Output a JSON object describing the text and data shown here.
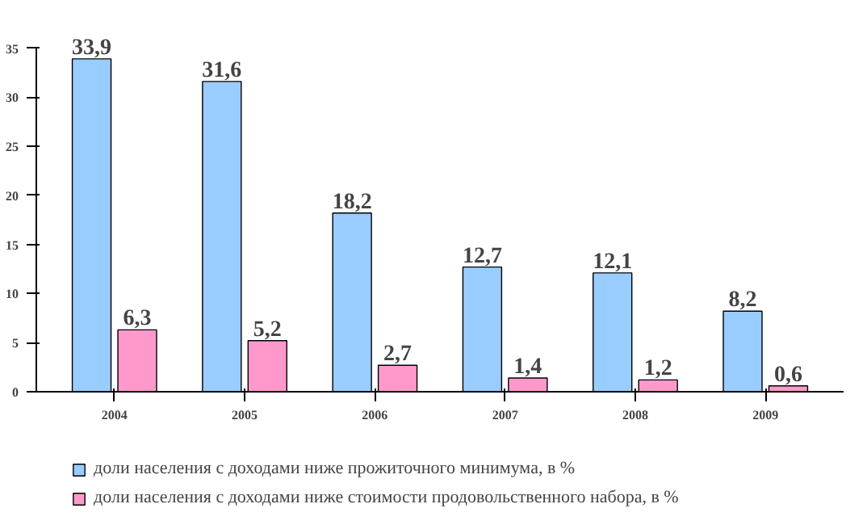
{
  "chart_data": {
    "type": "bar",
    "categories": [
      "2004",
      "2005",
      "2006",
      "2007",
      "2008",
      "2009"
    ],
    "series": [
      {
        "name": "доли населения с доходами ниже прожиточного минимума, в %",
        "color": "#99ccff",
        "values": [
          33.9,
          31.6,
          18.2,
          12.7,
          12.1,
          8.2
        ],
        "value_labels": [
          "33,9",
          "31,6",
          "18,2",
          "12,7",
          "12,1",
          "8,2"
        ]
      },
      {
        "name": "доли населения с доходами ниже стоимости продовольственного набора, в %",
        "color": "#ff99cc",
        "values": [
          6.3,
          5.2,
          2.7,
          1.4,
          1.2,
          0.6
        ],
        "value_labels": [
          "6,3",
          "5,2",
          "2,7",
          "1,4",
          "1,2",
          "0,6"
        ]
      }
    ],
    "ylim": [
      0,
      35
    ],
    "yticks": [
      0,
      5,
      10,
      15,
      20,
      25,
      30,
      35
    ],
    "grid": false,
    "legend": "bottom"
  }
}
